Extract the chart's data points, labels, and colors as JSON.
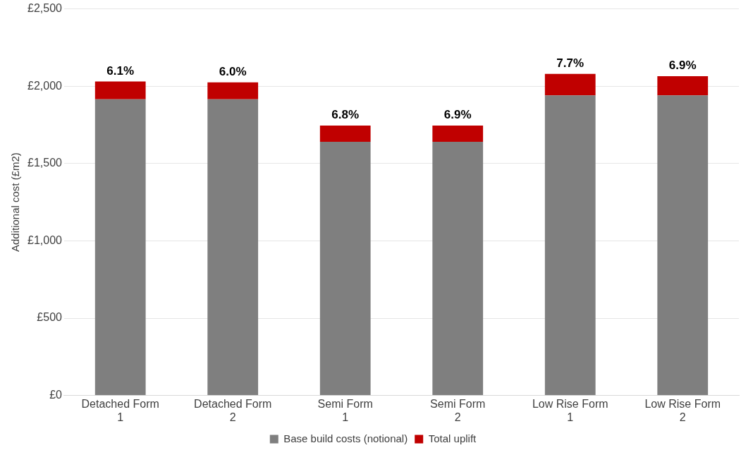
{
  "chart_data": {
    "type": "bar",
    "stacked": true,
    "ylabel": "Additional cost (£m2)",
    "categories": [
      "Detached Form 1",
      "Detached Form 2",
      "Semi Form 1",
      "Semi Form 2",
      "Low Rise Form 1",
      "Low Rise Form 2"
    ],
    "series": [
      {
        "name": "Base build costs (notional)",
        "color": "#7f7f7f",
        "values": [
          1915,
          1915,
          1640,
          1640,
          1940,
          1940
        ]
      },
      {
        "name": "Total uplift",
        "color": "#c00000",
        "values": [
          115,
          110,
          105,
          105,
          140,
          125
        ]
      }
    ],
    "ylim": [
      0,
      2500
    ],
    "yticks": [
      {
        "value": 0,
        "label": "£0"
      },
      {
        "value": 500,
        "label": "£500"
      },
      {
        "value": 1000,
        "label": "£1,000"
      },
      {
        "value": 1500,
        "label": "£1,500"
      },
      {
        "value": 2000,
        "label": "£2,000"
      },
      {
        "value": 2500,
        "label": "£2,500"
      }
    ],
    "grid": "y",
    "legend": "bottom",
    "annotations": [
      {
        "text": "6.1%",
        "x": "Detached Form 1",
        "y": 2030
      },
      {
        "text": "6.0%",
        "x": "Detached Form 2",
        "y": 2025
      },
      {
        "text": "6.8%",
        "x": "Semi Form 1",
        "y": 1745
      },
      {
        "text": "6.9%",
        "x": "Semi Form 2",
        "y": 1745
      },
      {
        "text": "7.7%",
        "x": "Low Rise Form 1",
        "y": 2080
      },
      {
        "text": "6.9%",
        "x": "Low Rise Form 2",
        "y": 2065
      }
    ]
  }
}
